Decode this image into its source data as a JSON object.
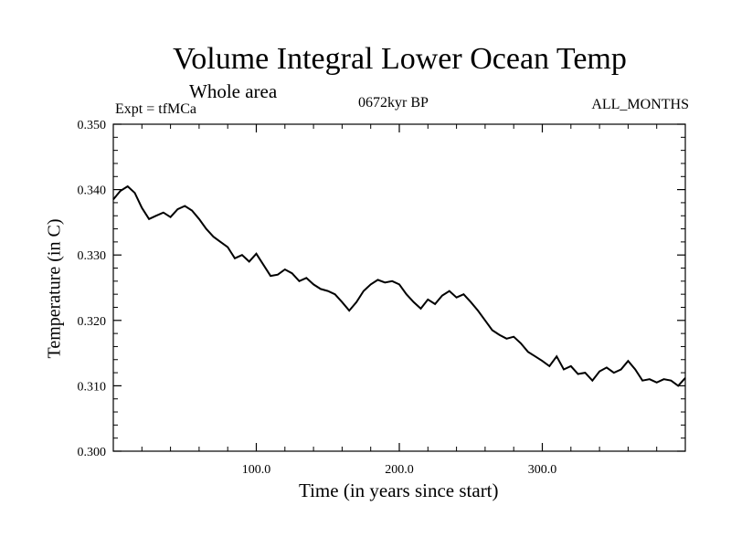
{
  "header": {
    "title": "Volume Integral Lower Ocean Temp",
    "subtitle": "Whole area",
    "expt": "Expt = tfMCa",
    "period": "0672kyr BP",
    "months": "ALL_MONTHS"
  },
  "chart_data": {
    "type": "line",
    "xlabel": "Time (in years since start)",
    "ylabel": "Temperature (in C)",
    "xlim": [
      0,
      400
    ],
    "ylim": [
      0.3,
      0.35
    ],
    "xticks": [
      100,
      200,
      300
    ],
    "xtick_labels": [
      "100.0",
      "200.0",
      "300.0"
    ],
    "yticks": [
      0.3,
      0.31,
      0.32,
      0.33,
      0.34,
      0.35
    ],
    "ytick_labels": [
      "0.300",
      "0.310",
      "0.320",
      "0.330",
      "0.340",
      "0.350"
    ],
    "grid": false,
    "series": [
      {
        "color": "#000000",
        "x": [
          0,
          5,
          10,
          15,
          20,
          25,
          30,
          35,
          40,
          45,
          50,
          55,
          60,
          65,
          70,
          75,
          80,
          85,
          90,
          95,
          100,
          105,
          110,
          115,
          120,
          125,
          130,
          135,
          140,
          145,
          150,
          155,
          160,
          165,
          170,
          175,
          180,
          185,
          190,
          195,
          200,
          205,
          210,
          215,
          220,
          225,
          230,
          235,
          240,
          245,
          250,
          255,
          260,
          265,
          270,
          275,
          280,
          285,
          290,
          295,
          300,
          305,
          310,
          315,
          320,
          325,
          330,
          335,
          340,
          345,
          350,
          355,
          360,
          365,
          370,
          375,
          380,
          385,
          390,
          395,
          400
        ],
        "y": [
          0.3385,
          0.3398,
          0.3405,
          0.3395,
          0.3372,
          0.3355,
          0.336,
          0.3365,
          0.3358,
          0.337,
          0.3375,
          0.3368,
          0.3355,
          0.334,
          0.3328,
          0.332,
          0.3312,
          0.3295,
          0.33,
          0.329,
          0.3302,
          0.3285,
          0.3268,
          0.327,
          0.3278,
          0.3272,
          0.326,
          0.3265,
          0.3255,
          0.3248,
          0.3245,
          0.324,
          0.3228,
          0.3215,
          0.3228,
          0.3245,
          0.3255,
          0.3262,
          0.3258,
          0.326,
          0.3255,
          0.324,
          0.3228,
          0.3218,
          0.3232,
          0.3225,
          0.3238,
          0.3245,
          0.3235,
          0.324,
          0.3228,
          0.3215,
          0.32,
          0.3185,
          0.3178,
          0.3172,
          0.3175,
          0.3165,
          0.3152,
          0.3145,
          0.3138,
          0.313,
          0.3145,
          0.3125,
          0.313,
          0.3118,
          0.312,
          0.3108,
          0.3122,
          0.3128,
          0.312,
          0.3125,
          0.3138,
          0.3125,
          0.3108,
          0.311,
          0.3105,
          0.311,
          0.3108,
          0.31,
          0.3112
        ]
      }
    ]
  }
}
